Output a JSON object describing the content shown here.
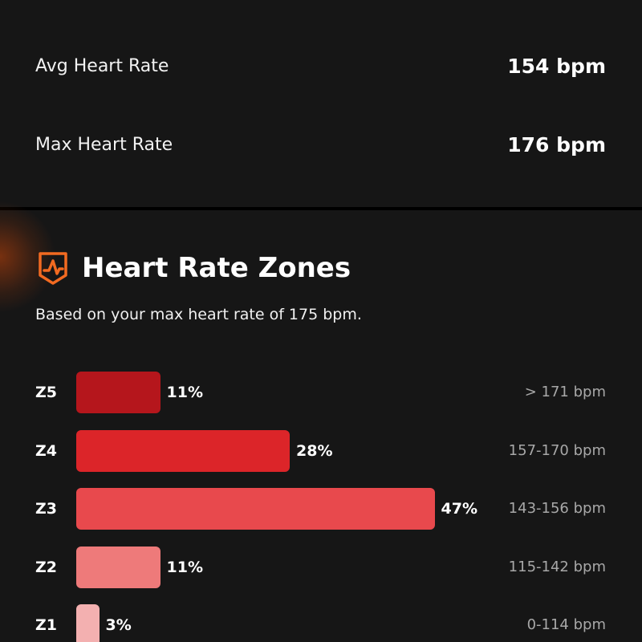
{
  "stats": [
    {
      "label": "Avg Heart Rate",
      "value": "154 bpm"
    },
    {
      "label": "Max Heart Rate",
      "value": "176 bpm"
    }
  ],
  "chart_data": {
    "type": "bar",
    "title": "Heart Rate Zones",
    "subtitle": "Based on your max heart rate of 175 bpm.",
    "categories": [
      "Z5",
      "Z4",
      "Z3",
      "Z2",
      "Z1"
    ],
    "values": [
      11,
      28,
      47,
      11,
      3
    ],
    "value_labels": [
      "11%",
      "28%",
      "47%",
      "11%",
      "3%"
    ],
    "ranges": [
      "> 171 bpm",
      "157-170 bpm",
      "143-156 bpm",
      "115-142 bpm",
      "0-114 bpm"
    ],
    "colors": [
      "#b5161c",
      "#dc2529",
      "#e8494d",
      "#ee7a7a",
      "#f3b0b0"
    ]
  }
}
